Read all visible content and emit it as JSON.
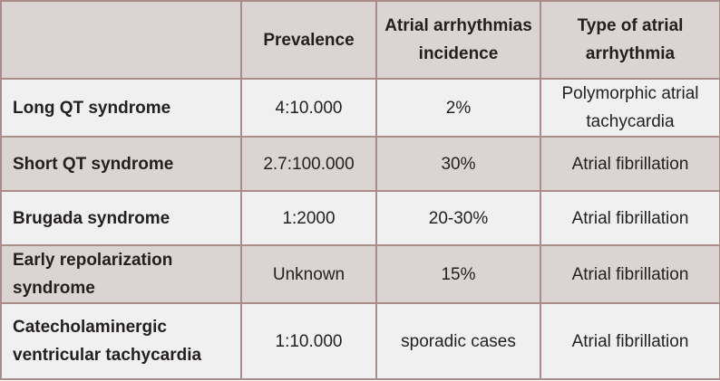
{
  "table": {
    "headers": [
      "",
      "Prevalence",
      "Atrial arrhythmias incidence",
      "Type of atrial arrhythmia"
    ],
    "rows": [
      [
        "Long QT syndrome",
        "4:10.000",
        "2%",
        "Polymorphic atrial tachycardia"
      ],
      [
        "Short QT syndrome",
        "2.7:100.000",
        "30%",
        "Atrial fibrillation"
      ],
      [
        "Brugada syndrome",
        "1:2000",
        "20-30%",
        "Atrial fibrillation"
      ],
      [
        "Early repolarization syndrome",
        "Unknown",
        "15%",
        "Atrial fibrillation"
      ],
      [
        "Catecholaminergic ventricular tachycardia",
        "1:10.000",
        "sporadic cases",
        "Atrial fibrillation"
      ]
    ]
  },
  "colors": {
    "dark_row": "#dcd4d2",
    "light_row": "#f0f0f0",
    "border": "#a98d8b",
    "text": "#231f20"
  }
}
